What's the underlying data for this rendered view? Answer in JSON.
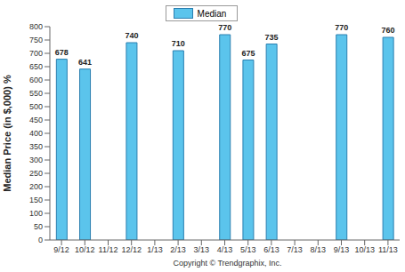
{
  "chart_data": {
    "type": "bar",
    "y_label": "Median Price (in $,000) %",
    "categories": [
      "9/12",
      "10/12",
      "11/12",
      "12/12",
      "1/13",
      "2/13",
      "3/13",
      "4/13",
      "5/13",
      "6/13",
      "7/13",
      "8/13",
      "9/13",
      "10/13",
      "11/13"
    ],
    "series": [
      {
        "name": "Median",
        "color": "#5bc4ec",
        "values": [
          678,
          641,
          0,
          740,
          0,
          710,
          0,
          770,
          675,
          735,
          0,
          0,
          770,
          0,
          760
        ]
      }
    ],
    "ylim": [
      0,
      800
    ],
    "yticks": [
      0,
      50,
      100,
      150,
      200,
      250,
      300,
      350,
      400,
      450,
      500,
      550,
      600,
      650,
      700,
      750,
      800
    ],
    "grid": false,
    "legend": "top",
    "data_labels": true,
    "annotations": [
      "Copyright © Trendgraphix, Inc."
    ]
  }
}
